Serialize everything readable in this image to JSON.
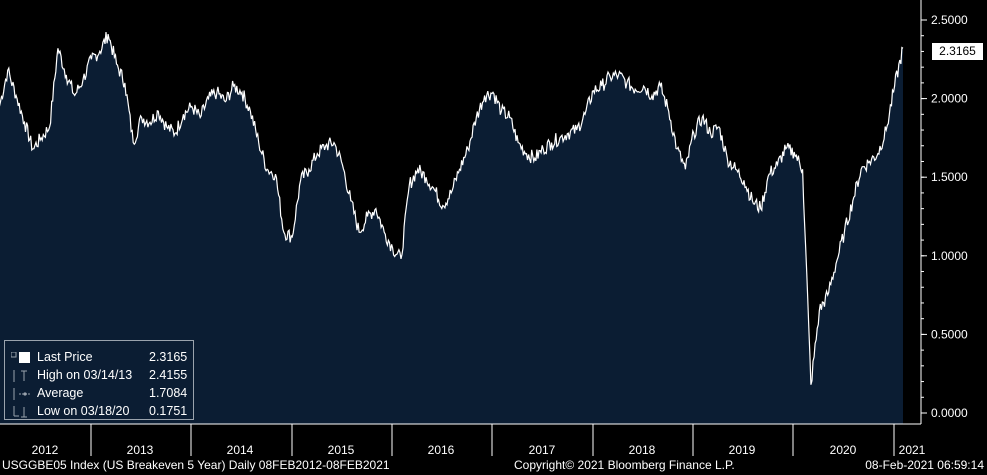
{
  "chart_data": {
    "type": "area",
    "title": "",
    "xlabel": "",
    "ylabel": "",
    "ylim": [
      0,
      2.55
    ],
    "y_ticks": [
      "2.5000",
      "2.0000",
      "1.5000",
      "1.0000",
      "0.5000",
      "0.0000"
    ],
    "x_ticks": [
      "2012",
      "2013",
      "2014",
      "2015",
      "2016",
      "2017",
      "2018",
      "2019",
      "2020",
      "2021"
    ],
    "colors": {
      "fill": "#0b1d33",
      "line": "#ffffff",
      "background": "#000000"
    },
    "series": [
      {
        "points": [
          [
            "2012-02",
            1.95
          ],
          [
            "2012-03",
            2.18
          ],
          [
            "2012-04",
            2.02
          ],
          [
            "2012-05",
            1.85
          ],
          [
            "2012-06",
            1.68
          ],
          [
            "2012-07",
            1.75
          ],
          [
            "2012-08",
            1.82
          ],
          [
            "2012-09",
            2.32
          ],
          [
            "2012-10",
            2.15
          ],
          [
            "2012-11",
            2.02
          ],
          [
            "2012-12",
            2.12
          ],
          [
            "2013-01",
            2.25
          ],
          [
            "2013-02",
            2.3
          ],
          [
            "2013-03",
            2.41
          ],
          [
            "2013-04",
            2.22
          ],
          [
            "2013-05",
            2.1
          ],
          [
            "2013-06",
            1.72
          ],
          [
            "2013-07",
            1.88
          ],
          [
            "2013-08",
            1.85
          ],
          [
            "2013-09",
            1.92
          ],
          [
            "2013-10",
            1.82
          ],
          [
            "2013-11",
            1.78
          ],
          [
            "2013-12",
            1.9
          ],
          [
            "2014-01",
            1.95
          ],
          [
            "2014-02",
            1.88
          ],
          [
            "2014-03",
            2.0
          ],
          [
            "2014-04",
            2.04
          ],
          [
            "2014-05",
            1.98
          ],
          [
            "2014-06",
            2.08
          ],
          [
            "2014-07",
            2.04
          ],
          [
            "2014-08",
            1.92
          ],
          [
            "2014-09",
            1.72
          ],
          [
            "2014-10",
            1.55
          ],
          [
            "2014-11",
            1.52
          ],
          [
            "2014-12",
            1.15
          ],
          [
            "2015-01",
            1.12
          ],
          [
            "2015-02",
            1.48
          ],
          [
            "2015-03",
            1.55
          ],
          [
            "2015-04",
            1.65
          ],
          [
            "2015-05",
            1.7
          ],
          [
            "2015-06",
            1.72
          ],
          [
            "2015-07",
            1.58
          ],
          [
            "2015-08",
            1.35
          ],
          [
            "2015-09",
            1.15
          ],
          [
            "2015-10",
            1.25
          ],
          [
            "2015-11",
            1.3
          ],
          [
            "2015-12",
            1.15
          ],
          [
            "2016-01",
            1.05
          ],
          [
            "2016-02",
            0.98
          ],
          [
            "2016-03",
            1.45
          ],
          [
            "2016-04",
            1.55
          ],
          [
            "2016-05",
            1.5
          ],
          [
            "2016-06",
            1.42
          ],
          [
            "2016-07",
            1.32
          ],
          [
            "2016-08",
            1.4
          ],
          [
            "2016-09",
            1.55
          ],
          [
            "2016-10",
            1.68
          ],
          [
            "2016-11",
            1.88
          ],
          [
            "2016-12",
            2.02
          ],
          [
            "2017-01",
            2.04
          ],
          [
            "2017-02",
            1.92
          ],
          [
            "2017-03",
            1.88
          ],
          [
            "2017-04",
            1.72
          ],
          [
            "2017-05",
            1.65
          ],
          [
            "2017-06",
            1.62
          ],
          [
            "2017-07",
            1.68
          ],
          [
            "2017-08",
            1.72
          ],
          [
            "2017-09",
            1.75
          ],
          [
            "2017-10",
            1.78
          ],
          [
            "2017-11",
            1.8
          ],
          [
            "2017-12",
            1.9
          ],
          [
            "2018-01",
            2.05
          ],
          [
            "2018-02",
            2.08
          ],
          [
            "2018-03",
            2.14
          ],
          [
            "2018-04",
            2.15
          ],
          [
            "2018-05",
            2.1
          ],
          [
            "2018-06",
            2.06
          ],
          [
            "2018-07",
            2.08
          ],
          [
            "2018-08",
            2.02
          ],
          [
            "2018-09",
            2.08
          ],
          [
            "2018-10",
            1.92
          ],
          [
            "2018-11",
            1.68
          ],
          [
            "2018-12",
            1.55
          ],
          [
            "2019-01",
            1.78
          ],
          [
            "2019-02",
            1.88
          ],
          [
            "2019-03",
            1.78
          ],
          [
            "2019-04",
            1.82
          ],
          [
            "2019-05",
            1.62
          ],
          [
            "2019-06",
            1.55
          ],
          [
            "2019-07",
            1.48
          ],
          [
            "2019-08",
            1.35
          ],
          [
            "2019-09",
            1.3
          ],
          [
            "2019-10",
            1.52
          ],
          [
            "2019-11",
            1.58
          ],
          [
            "2019-12",
            1.68
          ],
          [
            "2020-01",
            1.66
          ],
          [
            "2020-02",
            1.55
          ],
          [
            "2020-03",
            0.18
          ],
          [
            "2020-04",
            0.65
          ],
          [
            "2020-05",
            0.75
          ],
          [
            "2020-06",
            0.95
          ],
          [
            "2020-07",
            1.15
          ],
          [
            "2020-08",
            1.35
          ],
          [
            "2020-09",
            1.55
          ],
          [
            "2020-10",
            1.6
          ],
          [
            "2020-11",
            1.65
          ],
          [
            "2020-12",
            1.8
          ],
          [
            "2021-01",
            2.08
          ],
          [
            "2021-02",
            2.32
          ]
        ]
      }
    ],
    "last_value_label": "2.3165",
    "legend": [
      {
        "label": "Last Price",
        "value": "2.3165"
      },
      {
        "label": "High on 03/14/13",
        "value": "2.4155"
      },
      {
        "label": "Average",
        "value": "1.7084"
      },
      {
        "label": "Low on 03/18/20",
        "value": "0.1751"
      }
    ]
  },
  "footer": {
    "left": "USGGBE05 Index (US Breakeven 5 Year)  Daily 08FEB2012-08FEB2021",
    "center": "Copyright© 2021 Bloomberg Finance L.P.",
    "right": "08-Feb-2021 06:59:14"
  }
}
